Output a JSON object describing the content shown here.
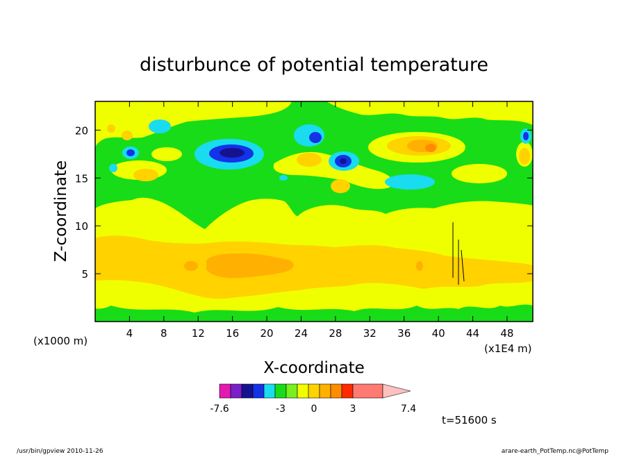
{
  "chart_data": {
    "type": "heatmap",
    "title": "disturbunce of potential temperature",
    "xlabel": "X-coordinate",
    "ylabel": "Z-coordinate",
    "x_unit_left": "(x1000 m)",
    "x_unit_right": "(x1E4 m)",
    "xlim": [
      0,
      51
    ],
    "ylim": [
      0,
      23
    ],
    "x_ticks": [
      4,
      8,
      12,
      16,
      20,
      24,
      28,
      32,
      36,
      40,
      44,
      48
    ],
    "y_ticks": [
      5,
      10,
      15,
      20
    ],
    "colorbar": {
      "labels": [
        "-7.6",
        "-3",
        "0",
        "3",
        "7.4"
      ],
      "colors": [
        "#e41ab0",
        "#7a1fc8",
        "#16128f",
        "#1432e6",
        "#19dcf0",
        "#19dc19",
        "#78f01e",
        "#f0ff00",
        "#ffd200",
        "#ffb000",
        "#ff8c00",
        "#ff2a00",
        "#ff7a70"
      ],
      "extend_color": "#ffc0c0"
    },
    "time_label": "t=51600 s",
    "regions": [
      {
        "level": "positive-1",
        "desc": "wide band z 0-13"
      },
      {
        "level": "positive-2",
        "desc": "band z 2.5-8.5"
      },
      {
        "level": "positive-3",
        "desc": "core x 13-23, z 4.5-7"
      }
    ]
  },
  "footer": {
    "left": "/usr/bin/gpview   2010-11-26",
    "right": "arare-earth_PotTemp.nc@PotTemp"
  }
}
